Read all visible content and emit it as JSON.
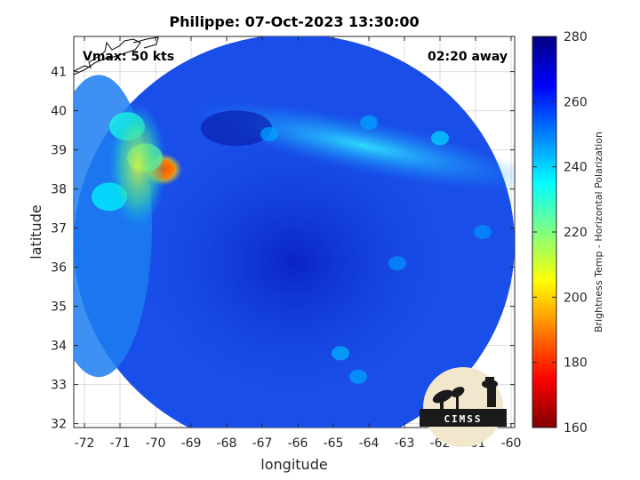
{
  "chart_data": {
    "type": "heatmap",
    "title": "Philippe: 07-Oct-2023 13:30:00",
    "xlabel": "longitude",
    "ylabel": "latitude",
    "xlim": [
      -72.3,
      -59.9
    ],
    "ylim": [
      31.9,
      41.9
    ],
    "xticks": [
      -72,
      -71,
      -70,
      -69,
      -68,
      -67,
      -66,
      -65,
      -64,
      -63,
      -62,
      -61,
      -60
    ],
    "yticks": [
      32,
      33,
      34,
      35,
      36,
      37,
      38,
      39,
      40,
      41
    ],
    "grid": true,
    "annotations": {
      "vmax": "Vmax: 50 kts",
      "time_away": "02:20 away"
    },
    "colorbar": {
      "label": "Brightness Temp - Horizontal Polarization",
      "range": [
        160,
        280
      ],
      "ticks": [
        280,
        260,
        240,
        220,
        200,
        180,
        160
      ],
      "colormap": [
        "#800000",
        "#ff0000",
        "#ff8000",
        "#ffff00",
        "#80ff80",
        "#00ffff",
        "#0080ff",
        "#0000ff",
        "#000080"
      ]
    },
    "swath": {
      "center_lon": -66.1,
      "center_lat": 36.6,
      "background_value": 262
    },
    "features": [
      {
        "lon": -69.8,
        "lat": 38.5,
        "value": 188
      },
      {
        "lon": -70.3,
        "lat": 38.8,
        "value": 222
      },
      {
        "lon": -70.8,
        "lat": 39.6,
        "value": 232
      },
      {
        "lon": -71.3,
        "lat": 37.8,
        "value": 236
      },
      {
        "lon": -62.0,
        "lat": 39.3,
        "value": 240
      },
      {
        "lon": -64.0,
        "lat": 39.7,
        "value": 246
      },
      {
        "lon": -64.8,
        "lat": 33.8,
        "value": 244
      },
      {
        "lon": -64.3,
        "lat": 33.2,
        "value": 246
      },
      {
        "lon": -66.8,
        "lat": 39.4,
        "value": 246
      },
      {
        "lon": -63.2,
        "lat": 36.1,
        "value": 248
      },
      {
        "lon": -60.8,
        "lat": 36.9,
        "value": 248
      }
    ],
    "logo_text": "CIMSS"
  }
}
